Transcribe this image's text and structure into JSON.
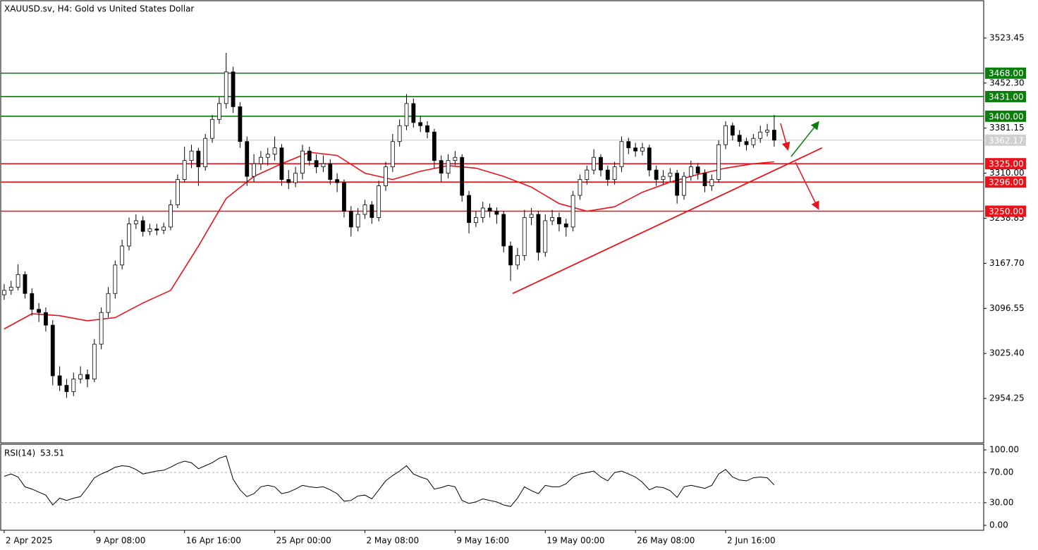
{
  "chart_data": {
    "type": "candlestick",
    "title": "XAUUSD.sv, H4:  Gold vs United States Dollar",
    "candle_colors": {
      "up": "#ffffff",
      "down": "#000000",
      "outline": "#000000"
    },
    "candles": [
      [
        3118,
        3135,
        3110,
        3125
      ],
      [
        3125,
        3140,
        3118,
        3130
      ],
      [
        3130,
        3166,
        3125,
        3150
      ],
      [
        3150,
        3155,
        3112,
        3120
      ],
      [
        3120,
        3128,
        3085,
        3095
      ],
      [
        3095,
        3105,
        3075,
        3090
      ],
      [
        3090,
        3098,
        3060,
        3070
      ],
      [
        3070,
        3078,
        2975,
        2990
      ],
      [
        2990,
        3005,
        2966,
        2975
      ],
      [
        2975,
        2985,
        2955,
        2965
      ],
      [
        2965,
        2995,
        2958,
        2985
      ],
      [
        2985,
        3005,
        2978,
        2992
      ],
      [
        2992,
        3000,
        2972,
        2985
      ],
      [
        2985,
        3048,
        2980,
        3040
      ],
      [
        3040,
        3098,
        3032,
        3090
      ],
      [
        3090,
        3130,
        3082,
        3120
      ],
      [
        3120,
        3172,
        3112,
        3165
      ],
      [
        3165,
        3205,
        3158,
        3195
      ],
      [
        3195,
        3240,
        3188,
        3230
      ],
      [
        3230,
        3245,
        3222,
        3235
      ],
      [
        3235,
        3242,
        3210,
        3218
      ],
      [
        3218,
        3230,
        3212,
        3222
      ],
      [
        3222,
        3230,
        3212,
        3220
      ],
      [
        3220,
        3232,
        3214,
        3225
      ],
      [
        3225,
        3268,
        3220,
        3260
      ],
      [
        3260,
        3308,
        3255,
        3300
      ],
      [
        3300,
        3352,
        3295,
        3330
      ],
      [
        3330,
        3355,
        3318,
        3345
      ],
      [
        3345,
        3350,
        3290,
        3320
      ],
      [
        3320,
        3372,
        3314,
        3365
      ],
      [
        3365,
        3402,
        3358,
        3395
      ],
      [
        3395,
        3430,
        3388,
        3420
      ],
      [
        3420,
        3500,
        3412,
        3470
      ],
      [
        3470,
        3478,
        3405,
        3415
      ],
      [
        3415,
        3422,
        3350,
        3360
      ],
      [
        3360,
        3368,
        3290,
        3305
      ],
      [
        3305,
        3340,
        3296,
        3325
      ],
      [
        3325,
        3345,
        3315,
        3335
      ],
      [
        3335,
        3350,
        3322,
        3340
      ],
      [
        3340,
        3368,
        3330,
        3350
      ],
      [
        3350,
        3356,
        3290,
        3300
      ],
      [
        3300,
        3315,
        3285,
        3295
      ],
      [
        3295,
        3320,
        3288,
        3310
      ],
      [
        3310,
        3355,
        3300,
        3345
      ],
      [
        3345,
        3352,
        3322,
        3330
      ],
      [
        3330,
        3340,
        3310,
        3320
      ],
      [
        3320,
        3338,
        3312,
        3325
      ],
      [
        3325,
        3332,
        3292,
        3300
      ],
      [
        3300,
        3310,
        3280,
        3295
      ],
      [
        3295,
        3300,
        3240,
        3250
      ],
      [
        3250,
        3258,
        3210,
        3225
      ],
      [
        3225,
        3255,
        3218,
        3245
      ],
      [
        3245,
        3268,
        3238,
        3260
      ],
      [
        3260,
        3266,
        3230,
        3240
      ],
      [
        3240,
        3298,
        3234,
        3290
      ],
      [
        3290,
        3328,
        3282,
        3320
      ],
      [
        3320,
        3372,
        3312,
        3360
      ],
      [
        3360,
        3395,
        3352,
        3385
      ],
      [
        3385,
        3435,
        3378,
        3420
      ],
      [
        3420,
        3428,
        3382,
        3390
      ],
      [
        3390,
        3400,
        3375,
        3385
      ],
      [
        3385,
        3392,
        3365,
        3375
      ],
      [
        3375,
        3380,
        3318,
        3330
      ],
      [
        3330,
        3338,
        3296,
        3310
      ],
      [
        3310,
        3340,
        3302,
        3330
      ],
      [
        3330,
        3345,
        3322,
        3335
      ],
      [
        3335,
        3340,
        3265,
        3275
      ],
      [
        3275,
        3282,
        3215,
        3232
      ],
      [
        3232,
        3250,
        3225,
        3240
      ],
      [
        3240,
        3265,
        3232,
        3255
      ],
      [
        3255,
        3262,
        3240,
        3250
      ],
      [
        3250,
        3256,
        3230,
        3245
      ],
      [
        3245,
        3250,
        3185,
        3195
      ],
      [
        3195,
        3202,
        3140,
        3165
      ],
      [
        3165,
        3192,
        3158,
        3180
      ],
      [
        3180,
        3252,
        3172,
        3240
      ],
      [
        3240,
        3255,
        3228,
        3245
      ],
      [
        3245,
        3250,
        3172,
        3185
      ],
      [
        3185,
        3245,
        3178,
        3235
      ],
      [
        3235,
        3252,
        3228,
        3240
      ],
      [
        3240,
        3248,
        3218,
        3230
      ],
      [
        3230,
        3238,
        3210,
        3225
      ],
      [
        3225,
        3282,
        3218,
        3275
      ],
      [
        3275,
        3308,
        3268,
        3300
      ],
      [
        3300,
        3322,
        3292,
        3315
      ],
      [
        3315,
        3348,
        3308,
        3335
      ],
      [
        3335,
        3340,
        3305,
        3315
      ],
      [
        3315,
        3322,
        3290,
        3300
      ],
      [
        3300,
        3328,
        3292,
        3320
      ],
      [
        3320,
        3368,
        3312,
        3360
      ],
      [
        3360,
        3366,
        3340,
        3350
      ],
      [
        3350,
        3358,
        3336,
        3345
      ],
      [
        3345,
        3358,
        3338,
        3350
      ],
      [
        3350,
        3355,
        3305,
        3315
      ],
      [
        3315,
        3322,
        3290,
        3300
      ],
      [
        3300,
        3315,
        3292,
        3305
      ],
      [
        3305,
        3318,
        3296,
        3310
      ],
      [
        3310,
        3315,
        3262,
        3275
      ],
      [
        3275,
        3312,
        3268,
        3305
      ],
      [
        3305,
        3330,
        3298,
        3320
      ],
      [
        3320,
        3326,
        3300,
        3310
      ],
      [
        3310,
        3316,
        3280,
        3290
      ],
      [
        3290,
        3308,
        3282,
        3300
      ],
      [
        3300,
        3362,
        3295,
        3355
      ],
      [
        3355,
        3392,
        3348,
        3385
      ],
      [
        3385,
        3390,
        3362,
        3370
      ],
      [
        3370,
        3378,
        3352,
        3360
      ],
      [
        3360,
        3366,
        3346,
        3355
      ],
      [
        3355,
        3372,
        3350,
        3365
      ],
      [
        3365,
        3385,
        3358,
        3375
      ],
      [
        3375,
        3388,
        3368,
        3378
      ],
      [
        3378,
        3402,
        3352,
        3362.17
      ]
    ],
    "xlim": [
      -0.5,
      141.2
    ],
    "xticks": [
      {
        "value": 0,
        "label": "2 Apr 2025"
      },
      {
        "value": 13,
        "label": "9 Apr 08:00"
      },
      {
        "value": 26,
        "label": "16 Apr 16:00"
      },
      {
        "value": 39,
        "label": "25 Apr 00:00"
      },
      {
        "value": 52,
        "label": "2 May 08:00"
      },
      {
        "value": 65,
        "label": "9 May 16:00"
      },
      {
        "value": 78,
        "label": "19 May 00:00"
      },
      {
        "value": 91,
        "label": "26 May 08:00"
      },
      {
        "value": 104,
        "label": "2 Jun 16:00"
      }
    ],
    "ylim": [
      2884.2,
      3581.3
    ],
    "yticks": [
      {
        "value": 3523.45,
        "label": "3523.45"
      },
      {
        "value": 3452.3,
        "label": "3452.30"
      },
      {
        "value": 3381.15,
        "label": "3381.15"
      },
      {
        "value": 3310,
        "label": "3310.00"
      },
      {
        "value": 3238.85,
        "label": "3238.85"
      },
      {
        "value": 3167.7,
        "label": "3167.70"
      },
      {
        "value": 3096.55,
        "label": "3096.55"
      },
      {
        "value": 3025.4,
        "label": "3025.40"
      },
      {
        "value": 2954.25,
        "label": "2954.25"
      }
    ],
    "moving_average": {
      "color": "#e8131b",
      "x": [
        0,
        4,
        8,
        12,
        16,
        20,
        24,
        28,
        32,
        36,
        40,
        44,
        48,
        52,
        56,
        60,
        64,
        68,
        72,
        76,
        80,
        84,
        88,
        92,
        96,
        100,
        104,
        108,
        111
      ],
      "values": [
        3064,
        3088,
        3085,
        3077,
        3082,
        3105,
        3125,
        3195,
        3270,
        3305,
        3325,
        3343,
        3338,
        3310,
        3300,
        3313,
        3322,
        3318,
        3305,
        3288,
        3262,
        3250,
        3257,
        3280,
        3296,
        3308,
        3318,
        3325,
        3328
      ]
    },
    "trendline": {
      "color": "#e8131b",
      "x": [
        73.3,
        117.9
      ],
      "values": [
        3120,
        3350
      ]
    },
    "levels": [
      {
        "value": 3468,
        "label": "3468.00",
        "color": "#0a7d0a"
      },
      {
        "value": 3431,
        "label": "3431.00",
        "color": "#0a7d0a"
      },
      {
        "value": 3400,
        "label": "3400.00",
        "color": "#0a7d0a"
      },
      {
        "value": 3325,
        "label": "3325.00",
        "color": "#e8131b"
      },
      {
        "value": 3296,
        "label": "3296.00",
        "color": "#e8131b"
      },
      {
        "value": 3250,
        "label": "3250.00",
        "color": "#e8131b"
      }
    ],
    "last_price": 3362.17,
    "rsi": {
      "name": "RSI(14)",
      "values": [
        65,
        68,
        64,
        51,
        48,
        44,
        40,
        27,
        36,
        33,
        36,
        38,
        50,
        63,
        68,
        72,
        77,
        79,
        78,
        74,
        68,
        70,
        72,
        73,
        77,
        82,
        85,
        83,
        75,
        79,
        83,
        89,
        92,
        61,
        47,
        38,
        42,
        51,
        53,
        51,
        42,
        44,
        48,
        53,
        51,
        50,
        51,
        47,
        42,
        32,
        33,
        39,
        40,
        35,
        47,
        59,
        66,
        72,
        79,
        68,
        64,
        61,
        48,
        50,
        53,
        51,
        33,
        29,
        31,
        35,
        33,
        31,
        27,
        25,
        36,
        51,
        46,
        42,
        53,
        51,
        51,
        55,
        64,
        68,
        70,
        72,
        64,
        59,
        70,
        72,
        68,
        64,
        57,
        47,
        51,
        50,
        46,
        37,
        51,
        53,
        51,
        49,
        53,
        68,
        74,
        64,
        60,
        59,
        63,
        64,
        63,
        53.51
      ],
      "ylim": [
        0,
        100
      ],
      "yticks": [
        {
          "value": 100,
          "label": "100.00"
        },
        {
          "value": 70,
          "label": "70.00"
        },
        {
          "value": 30,
          "label": "30.00"
        },
        {
          "value": 0,
          "label": "0.00"
        }
      ],
      "grid_levels": [
        70,
        30
      ]
    }
  }
}
